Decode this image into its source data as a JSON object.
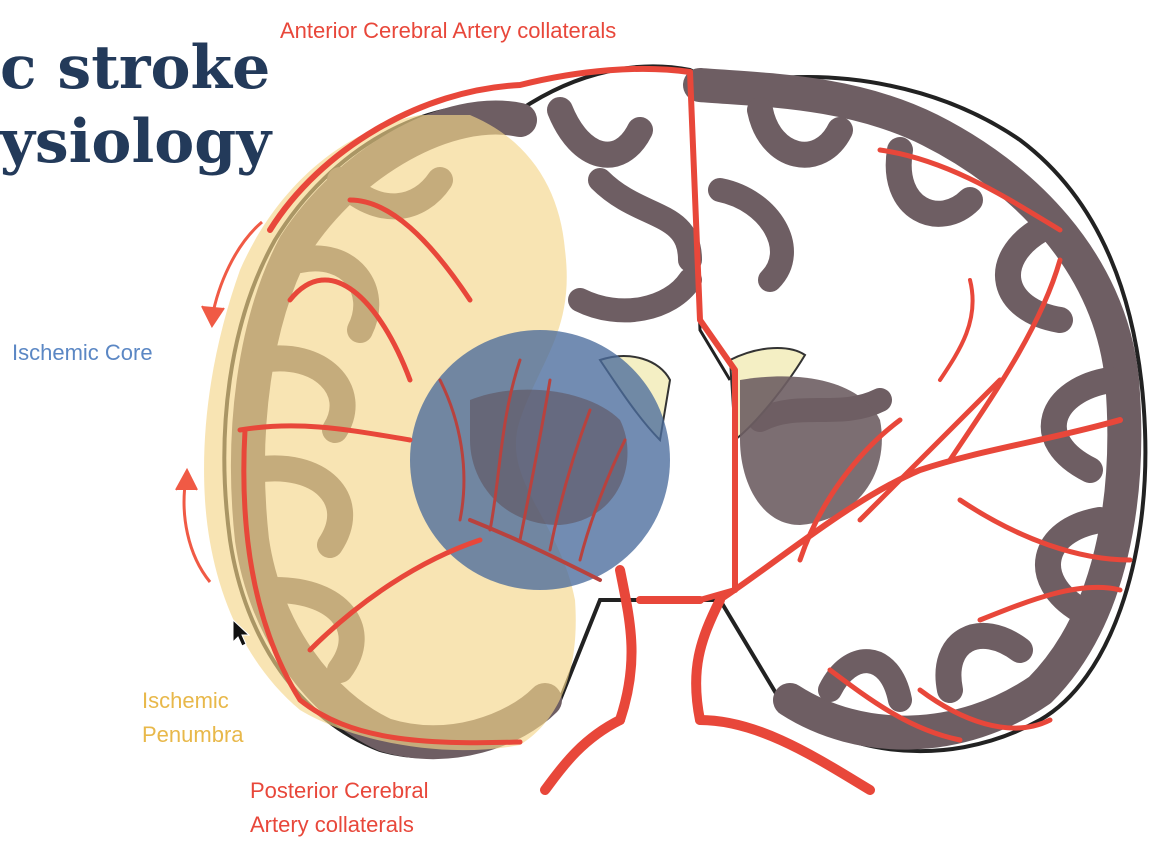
{
  "slide": {
    "title_line1": "c stroke",
    "title_line2": "ysiology"
  },
  "labels": {
    "anterior_collaterals": "Anterior Cerebral Artery collaterals",
    "ischemic_core": "Ischemic Core",
    "penumbra_line1": "Ischemic",
    "penumbra_line2": "Penumbra",
    "posterior_line1": "Posterior Cerebral",
    "posterior_line2": "Artery collaterals"
  },
  "colors": {
    "title": "#233a5a",
    "artery": "#e8473a",
    "core": "#4a6b9c",
    "core_label": "#5b87c4",
    "penumbra": "#f5d58a",
    "penumbra_label": "#e8b84a",
    "cortex": "#6e5e63",
    "ventricle": "#f4efc4"
  },
  "icons": {
    "arrow_up": "curved-arrow-up-icon",
    "arrow_down": "curved-arrow-down-icon",
    "cursor": "mouse-cursor-icon"
  }
}
